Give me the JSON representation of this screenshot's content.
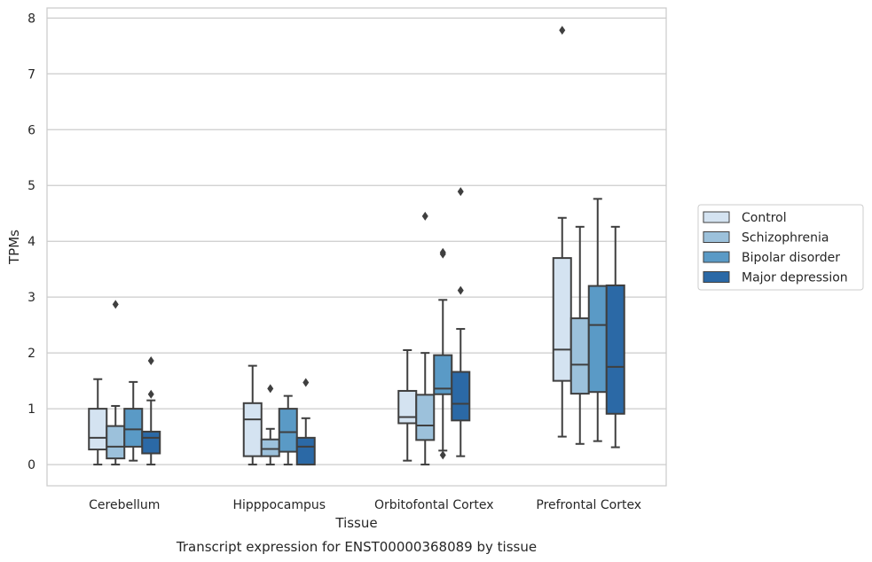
{
  "chart_data": {
    "type": "box",
    "xlabel": "Tissue",
    "ylabel": "TPMs",
    "caption": "Transcript expression for ENST00000368089 by tissue",
    "ylim": [
      -0.38,
      8.18
    ],
    "yticks": [
      0,
      1,
      2,
      3,
      4,
      5,
      6,
      7,
      8
    ],
    "grid": "horizontal",
    "legend_position": "right",
    "categories": [
      "Cerebellum",
      "Hipppocampus",
      "Orbitofontal Cortex",
      "Prefrontal Cortex"
    ],
    "series": [
      {
        "name": "Control",
        "color": "#d4e3f1",
        "boxes": [
          {
            "whisker_low": 0.0,
            "q1": 0.27,
            "median": 0.48,
            "q3": 1.0,
            "whisker_high": 1.53,
            "outliers": []
          },
          {
            "whisker_low": 0.0,
            "q1": 0.15,
            "median": 0.81,
            "q3": 1.1,
            "whisker_high": 1.77,
            "outliers": []
          },
          {
            "whisker_low": 0.07,
            "q1": 0.74,
            "median": 0.85,
            "q3": 1.32,
            "whisker_high": 2.05,
            "outliers": []
          },
          {
            "whisker_low": 0.5,
            "q1": 1.5,
            "median": 2.06,
            "q3": 3.7,
            "whisker_high": 4.42,
            "outliers": [
              7.78
            ]
          }
        ]
      },
      {
        "name": "Schizophrenia",
        "color": "#9cc1db",
        "boxes": [
          {
            "whisker_low": 0.0,
            "q1": 0.11,
            "median": 0.32,
            "q3": 0.69,
            "whisker_high": 1.05,
            "outliers": [
              2.87
            ]
          },
          {
            "whisker_low": 0.0,
            "q1": 0.15,
            "median": 0.28,
            "q3": 0.45,
            "whisker_high": 0.64,
            "outliers": [
              1.36
            ]
          },
          {
            "whisker_low": 0.0,
            "q1": 0.44,
            "median": 0.7,
            "q3": 1.25,
            "whisker_high": 2.0,
            "outliers": [
              4.45
            ]
          },
          {
            "whisker_low": 0.37,
            "q1": 1.27,
            "median": 1.79,
            "q3": 2.62,
            "whisker_high": 4.26,
            "outliers": []
          }
        ]
      },
      {
        "name": "Bipolar disorder",
        "color": "#5a9ac6",
        "boxes": [
          {
            "whisker_low": 0.07,
            "q1": 0.32,
            "median": 0.63,
            "q3": 1.0,
            "whisker_high": 1.48,
            "outliers": []
          },
          {
            "whisker_low": 0.0,
            "q1": 0.23,
            "median": 0.58,
            "q3": 1.0,
            "whisker_high": 1.23,
            "outliers": []
          },
          {
            "whisker_low": 0.25,
            "q1": 1.26,
            "median": 1.36,
            "q3": 1.96,
            "whisker_high": 2.95,
            "outliers": [
              0.17,
              3.77,
              3.8
            ]
          },
          {
            "whisker_low": 0.42,
            "q1": 1.3,
            "median": 2.5,
            "q3": 3.2,
            "whisker_high": 4.76,
            "outliers": []
          }
        ]
      },
      {
        "name": "Major depression",
        "color": "#2b69a6",
        "boxes": [
          {
            "whisker_low": 0.0,
            "q1": 0.2,
            "median": 0.48,
            "q3": 0.59,
            "whisker_high": 1.15,
            "outliers": [
              1.26,
              1.86
            ]
          },
          {
            "whisker_low": 0.0,
            "q1": 0.0,
            "median": 0.32,
            "q3": 0.48,
            "whisker_high": 0.83,
            "outliers": [
              1.47
            ]
          },
          {
            "whisker_low": 0.15,
            "q1": 0.79,
            "median": 1.09,
            "q3": 1.66,
            "whisker_high": 2.43,
            "outliers": [
              3.12,
              4.89
            ]
          },
          {
            "whisker_low": 0.31,
            "q1": 0.91,
            "median": 1.75,
            "q3": 3.21,
            "whisker_high": 4.26,
            "outliers": []
          }
        ]
      }
    ]
  }
}
